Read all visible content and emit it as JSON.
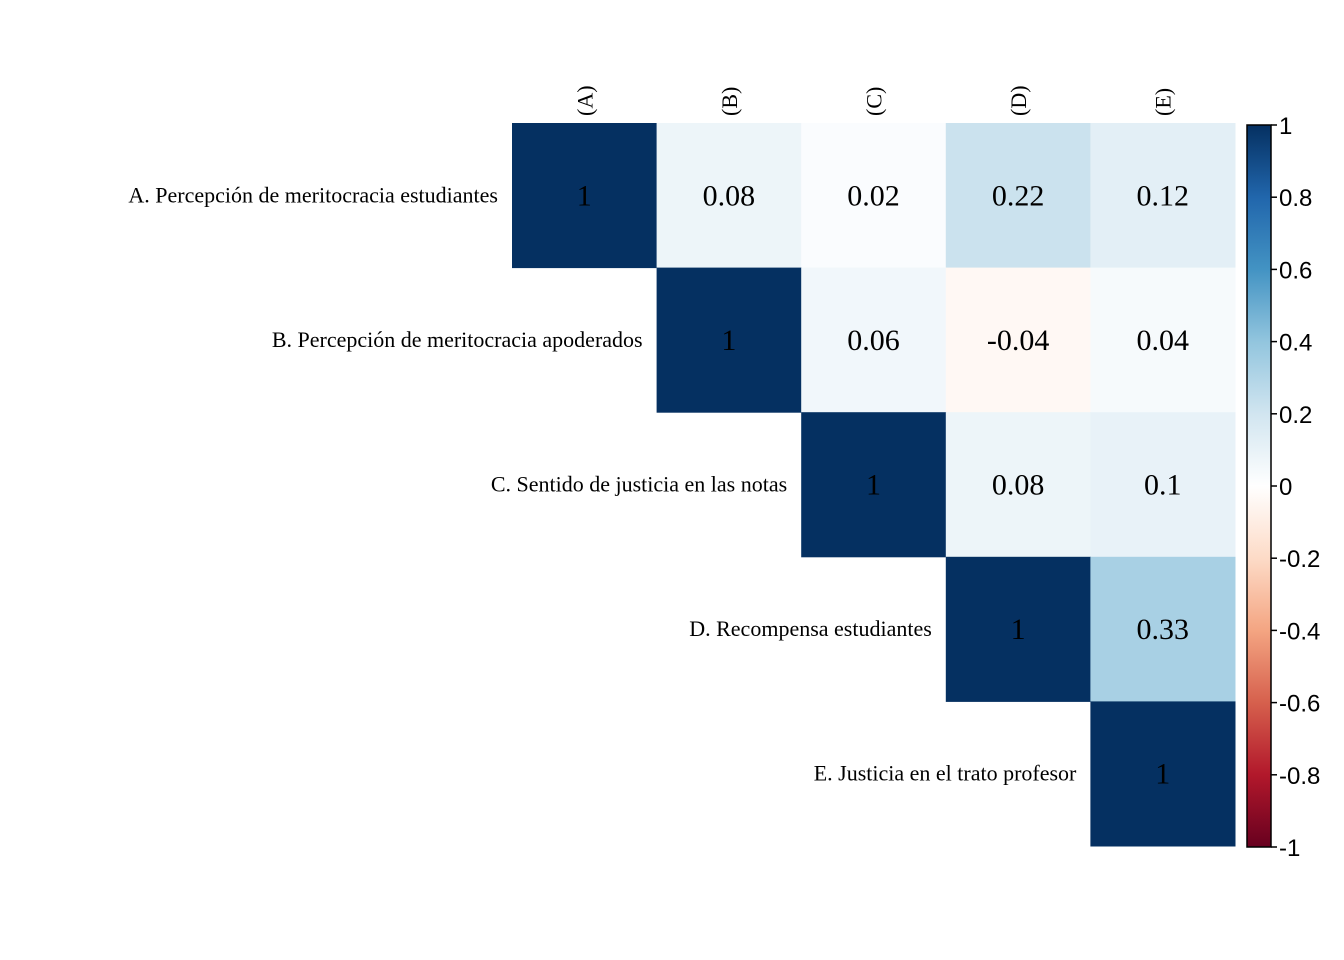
{
  "chart_data": {
    "type": "heatmap",
    "subtype": "correlation-matrix-upper",
    "title": "",
    "row_labels": [
      "A. Percepción de meritocracia estudiantes",
      "B. Percepción de meritocracia apoderados",
      "C. Sentido de justicia en las notas",
      "D. Recompensa estudiantes",
      "E. Justicia en el trato profesor"
    ],
    "col_labels": [
      "(A)",
      "(B)",
      "(C)",
      "(D)",
      "(E)"
    ],
    "values": [
      [
        1,
        0.08,
        0.02,
        0.22,
        0.12
      ],
      [
        null,
        1,
        0.06,
        -0.04,
        0.04
      ],
      [
        null,
        null,
        1,
        0.08,
        0.1
      ],
      [
        null,
        null,
        null,
        1,
        0.33
      ],
      [
        null,
        null,
        null,
        null,
        1
      ]
    ],
    "display_values": [
      [
        "1",
        "0.08",
        "0.02",
        "0.22",
        "0.12"
      ],
      [
        "",
        "1",
        "0.06",
        "-0.04",
        "0.04"
      ],
      [
        "",
        "",
        "1",
        "0.08",
        "0.1"
      ],
      [
        "",
        "",
        "",
        "1",
        "0.33"
      ],
      [
        "",
        "",
        "",
        "",
        "1"
      ]
    ],
    "color_scale": {
      "range": [
        -1,
        1
      ],
      "ticks": [
        1,
        0.8,
        0.6,
        0.4,
        0.2,
        0,
        -0.2,
        -0.4,
        -0.6,
        -0.8,
        -1
      ],
      "tick_labels": [
        "1",
        "0.8",
        "0.6",
        "0.4",
        "0.2",
        "0",
        "-0.2",
        "-0.4",
        "-0.6",
        "-0.8",
        "-1"
      ],
      "palette": "RdBu",
      "colors": {
        "neg1": "#67001F",
        "neg06": "#D6604D",
        "neg02": "#FDDBC7",
        "zero": "#FFFFFF",
        "pos02": "#D1E5F0",
        "pos04": "#92C5DE",
        "pos06": "#4393C3",
        "pos08": "#2166AC",
        "pos1": "#053061"
      }
    },
    "legend_placement": "right",
    "grid": false
  }
}
